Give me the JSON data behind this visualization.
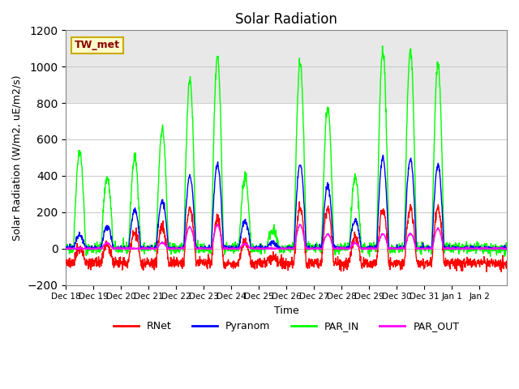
{
  "title": "Solar Radiation",
  "ylabel": "Solar Radiation (W/m2, uE/m2/s)",
  "xlabel": "Time",
  "n_days": 16,
  "ylim": [
    -200,
    1200
  ],
  "yticks": [
    -200,
    0,
    200,
    400,
    600,
    800,
    1000,
    1200
  ],
  "xtick_labels": [
    "Dec 18",
    "Dec 19",
    "Dec 20",
    "Dec 21",
    "Dec 22",
    "Dec 23",
    "Dec 24",
    "Dec 25",
    "Dec 26",
    "Dec 27",
    "Dec 28",
    "Dec 29",
    "Dec 30",
    "Dec 31",
    "Jan 1",
    "Jan 2"
  ],
  "annotation_text": "TW_met",
  "annotation_color": "#8B0000",
  "annotation_bg": "#FFFFCC",
  "annotation_border": "#CCAA00",
  "colors": {
    "RNet": "#FF0000",
    "Pyranom": "#0000FF",
    "PAR_IN": "#00FF00",
    "PAR_OUT": "#FF00FF"
  },
  "bg_upper": "#E8E8E8",
  "bg_lower": "#FFFFFF",
  "bg_split": 800,
  "grid_color": "#CCCCCC",
  "par_in_peaks": [
    535,
    390,
    500,
    660,
    935,
    1055,
    395,
    100,
    1025,
    775,
    390,
    1095,
    1095,
    1025,
    0,
    0
  ],
  "pyranom_peaks": [
    70,
    120,
    210,
    260,
    400,
    465,
    150,
    35,
    465,
    345,
    155,
    500,
    495,
    460,
    0,
    0
  ],
  "rnet_peaks": [
    80,
    100,
    175,
    200,
    300,
    250,
    120,
    30,
    300,
    300,
    140,
    300,
    300,
    300,
    0,
    0
  ],
  "par_out_peaks": [
    0,
    30,
    0,
    30,
    120,
    130,
    25,
    0,
    130,
    80,
    30,
    80,
    80,
    110,
    0,
    0
  ]
}
